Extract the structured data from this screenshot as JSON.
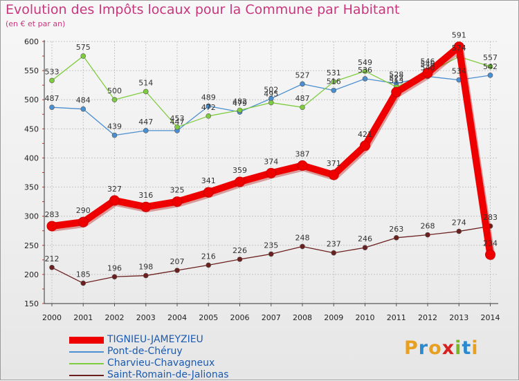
{
  "header": {
    "title": "Evolution des Impôts locaux pour la Commune par Habitant",
    "subtitle": "(en € et par an)"
  },
  "logo": {
    "letters": [
      "P",
      "r",
      "o",
      "x",
      "i",
      "t",
      "i"
    ],
    "colors": [
      "#e8a020",
      "#2a8ad0",
      "#e8a020",
      "#d82020",
      "#78b828",
      "#2a8ad0",
      "#e8a020"
    ]
  },
  "chart_data": {
    "type": "line",
    "x": [
      "2000",
      "2001",
      "2002",
      "2003",
      "2004",
      "2005",
      "2006",
      "2007",
      "2008",
      "2009",
      "2010",
      "2011",
      "2012",
      "2013",
      "2014"
    ],
    "ylim": [
      150,
      600
    ],
    "yticks": [
      150,
      200,
      250,
      300,
      350,
      400,
      450,
      500,
      550,
      600
    ],
    "grid": true,
    "legend_position": "bottom-left",
    "series": [
      {
        "name": "Saint-Romain-de-Jalionas",
        "color": "#6b1f1f",
        "values": [
          212,
          185,
          196,
          198,
          207,
          216,
          226,
          235,
          248,
          237,
          246,
          263,
          268,
          274,
          283
        ]
      },
      {
        "name": "Pont-de-Chéruy",
        "color": "#4a8fd0",
        "values": [
          487,
          484,
          439,
          447,
          447,
          489,
          479,
          502,
          527,
          516,
          536,
          528,
          540,
          534,
          542
        ]
      },
      {
        "name": "Charvieu-Chavagneux",
        "color": "#80cc40",
        "values": [
          533,
          575,
          500,
          514,
          453,
          472,
          482,
          495,
          487,
          531,
          549,
          522,
          546,
          574,
          557
        ]
      },
      {
        "name": "TIGNIEU-JAMEYZIEU",
        "color": "#ee0000",
        "values": [
          283,
          290,
          327,
          316,
          325,
          341,
          359,
          374,
          387,
          371,
          421,
          513,
          546,
          591,
          234
        ]
      }
    ],
    "legend_order": [
      "TIGNIEU-JAMEYZIEU",
      "Pont-de-Chéruy",
      "Charvieu-Chavagneux",
      "Saint-Romain-de-Jalionas"
    ]
  }
}
